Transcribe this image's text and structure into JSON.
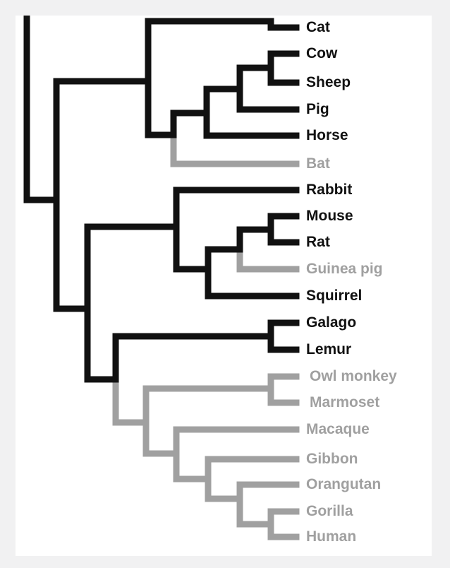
{
  "colors": {
    "dark": "#111111",
    "grey": "#a0a0a0",
    "background": "#ffffff",
    "frame": "#f1f1f2"
  },
  "taxa": [
    {
      "label": "Cat",
      "tone": "dark"
    },
    {
      "label": "Cow",
      "tone": "dark"
    },
    {
      "label": "Sheep",
      "tone": "dark"
    },
    {
      "label": "Pig",
      "tone": "dark"
    },
    {
      "label": "Horse",
      "tone": "dark"
    },
    {
      "label": "Bat",
      "tone": "grey"
    },
    {
      "label": "Rabbit",
      "tone": "dark"
    },
    {
      "label": "Mouse",
      "tone": "dark"
    },
    {
      "label": "Rat",
      "tone": "dark"
    },
    {
      "label": "Guinea pig",
      "tone": "grey"
    },
    {
      "label": "Squirrel",
      "tone": "dark"
    },
    {
      "label": "Galago",
      "tone": "dark"
    },
    {
      "label": "Lemur",
      "tone": "dark"
    },
    {
      "label": "Owl monkey",
      "tone": "grey"
    },
    {
      "label": "Marmoset",
      "tone": "grey"
    },
    {
      "label": "Macaque",
      "tone": "grey"
    },
    {
      "label": "Gibbon",
      "tone": "grey"
    },
    {
      "label": "Orangutan",
      "tone": "grey"
    },
    {
      "label": "Gorilla",
      "tone": "grey"
    },
    {
      "label": "Human",
      "tone": "grey"
    }
  ]
}
